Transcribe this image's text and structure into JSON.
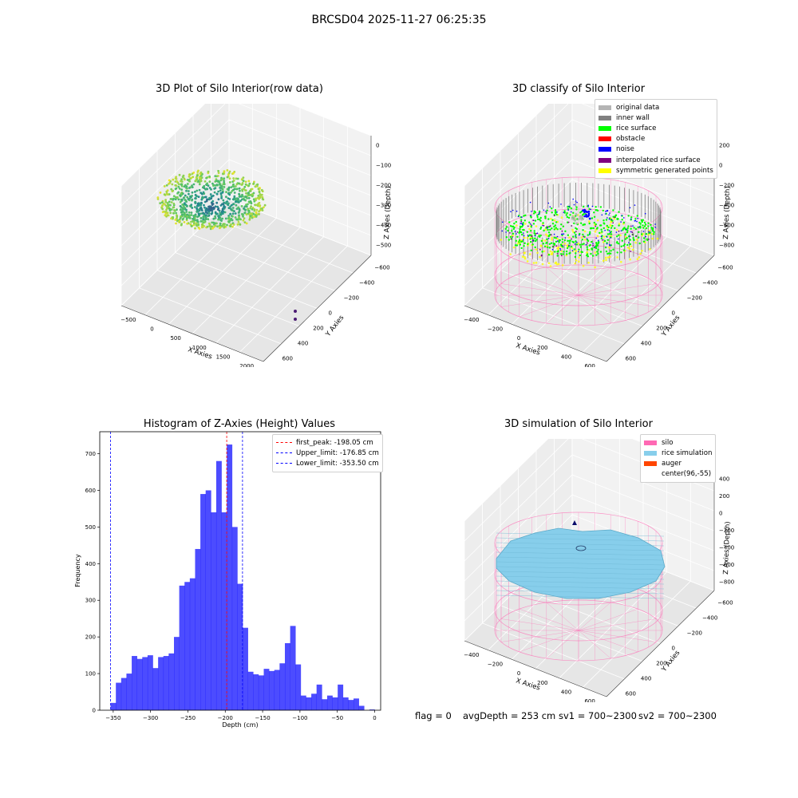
{
  "suptitle": "BRCSD04 2025-11-27 06:25:35",
  "footer": {
    "flag": "flag = 0",
    "avg_depth": "avgDepth = 253 cm",
    "sv1": "sv1 = 700~2300",
    "sv2": "sv2 = 700~2300"
  },
  "chart_data": [
    {
      "type": "scatter",
      "title": "3D Plot of Silo Interior(row data)",
      "xlabel": "X Axies",
      "ylabel": "Y Axies",
      "zlabel": "Z Axies (Depth)",
      "x_ticks": [
        "−500",
        "0",
        "500",
        "1000",
        "1500",
        "2000"
      ],
      "y_ticks": [
        "−600",
        "−400",
        "−200",
        "0",
        "200",
        "400",
        "600"
      ],
      "z_ticks": [
        "0",
        "−100",
        "−200",
        "−300",
        "−400",
        "−500"
      ],
      "colormap": "viridis"
    },
    {
      "type": "scatter",
      "title": "3D classify of Silo Interior",
      "xlabel": "X Axies",
      "ylabel": "Y Axies",
      "zlabel": "Z Axies (Depth)",
      "x_ticks": [
        "−400",
        "−200",
        "0",
        "200",
        "400",
        "600"
      ],
      "y_ticks": [
        "−600",
        "−400",
        "−200",
        "0",
        "200",
        "400",
        "600"
      ],
      "z_ticks": [
        "200",
        "0",
        "−200",
        "−400",
        "−600",
        "−800"
      ],
      "legend_position": "top-right",
      "legend": [
        {
          "name": "original data",
          "color": "#b4b4b4"
        },
        {
          "name": "inner wall",
          "color": "#808080"
        },
        {
          "name": "rice surface",
          "color": "#00ff00"
        },
        {
          "name": "obstacle",
          "color": "#ff0000"
        },
        {
          "name": "noise",
          "color": "#0000ff"
        },
        {
          "name": "interpolated rice surface",
          "color": "#800080"
        },
        {
          "name": "symmetric generated points",
          "color": "#ffff00"
        }
      ]
    },
    {
      "type": "bar",
      "title": "Histogram of Z-Axies (Height) Values",
      "xlabel": "Depth (cm)",
      "ylabel": "Frequency",
      "xlim": [
        -368,
        8
      ],
      "ylim": [
        0,
        760
      ],
      "x_ticks": [
        -350,
        -300,
        -250,
        -200,
        -150,
        -100,
        -50,
        0
      ],
      "y_ticks": [
        0,
        100,
        200,
        300,
        400,
        500,
        600,
        700
      ],
      "bar_color": "#0000ff",
      "bin_start": -353.5,
      "bin_width": 7.07,
      "values": [
        20,
        75,
        88,
        100,
        148,
        140,
        145,
        150,
        115,
        145,
        148,
        155,
        200,
        340,
        350,
        360,
        440,
        590,
        600,
        540,
        680,
        540,
        725,
        500,
        345,
        225,
        105,
        98,
        95,
        113,
        107,
        110,
        128,
        183,
        230,
        125,
        40,
        35,
        45,
        70,
        30,
        40,
        35,
        70,
        35,
        28,
        32,
        12,
        0,
        2
      ],
      "vlines": [
        {
          "label": "first_peak: -198.05 cm",
          "x": -198.05,
          "color": "#ff0000"
        },
        {
          "label": "Upper_limit: -176.85 cm",
          "x": -176.85,
          "color": "#0000ff"
        },
        {
          "label": "Lower_limit: -353.50 cm",
          "x": -353.5,
          "color": "#0000ff"
        }
      ],
      "legend_position": "top-right"
    },
    {
      "type": "scatter",
      "title": "3D simulation of Silo Interior",
      "xlabel": "X Axies",
      "ylabel": "Y Axies",
      "zlabel": "Z Axies (Depth)",
      "x_ticks": [
        "−400",
        "−200",
        "0",
        "200",
        "400",
        "600"
      ],
      "y_ticks": [
        "−600",
        "−400",
        "−200",
        "0",
        "200",
        "400",
        "600"
      ],
      "z_ticks": [
        "400",
        "200",
        "0",
        "−200",
        "−400",
        "−600",
        "−800"
      ],
      "legend_position": "top-right",
      "legend": [
        {
          "name": "silo",
          "color": "#ff69b4"
        },
        {
          "name": "rice simulation",
          "color": "#87ceeb"
        },
        {
          "name": "auger",
          "color": "#ff4500"
        },
        {
          "name": "center(96,-55)",
          "color": ""
        }
      ]
    }
  ]
}
